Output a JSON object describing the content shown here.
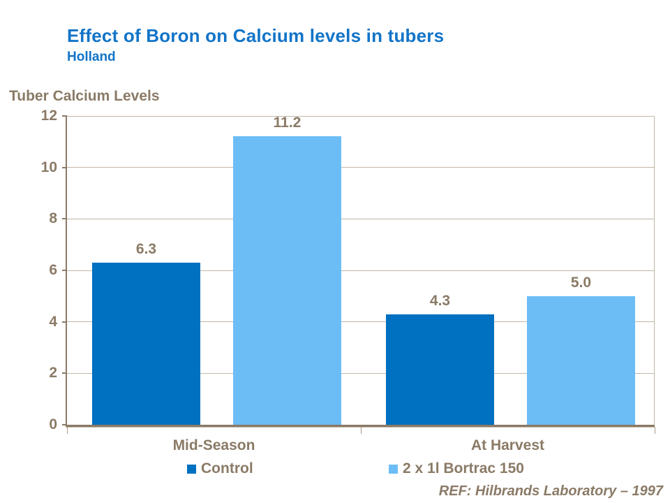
{
  "header": {
    "title": "Effect of Boron on Calcium levels in tubers",
    "subtitle": "Holland"
  },
  "footer": {
    "reference": "REF: Hilbrands Laboratory – 1997"
  },
  "colors": {
    "title_blue": "#1274C8",
    "chart_text_brown": "#8A7A66",
    "gridline": "#C2B7A6",
    "axis": "#8A7A66",
    "control_bar": "#0070C0",
    "bortrac_bar": "#6CBDF5"
  },
  "chart_data": {
    "type": "bar",
    "title": "Tuber Calcium Levels",
    "categories": [
      "Mid-Season",
      "At Harvest"
    ],
    "series": [
      {
        "name": "Control",
        "color": "#0070C0",
        "values": [
          6.3,
          4.3
        ]
      },
      {
        "name": "2 x 1l Bortrac 150",
        "color": "#6CBDF5",
        "values": [
          11.2,
          5.0
        ]
      }
    ],
    "data_labels": [
      "6.3",
      "11.2",
      "4.3",
      "5.0"
    ],
    "ylim": [
      0,
      12
    ],
    "yticks": [
      0,
      2,
      4,
      6,
      8,
      10,
      12
    ],
    "grid": true,
    "legend_position": "bottom"
  }
}
